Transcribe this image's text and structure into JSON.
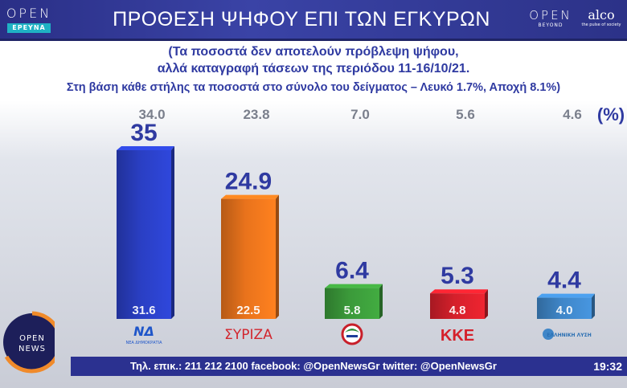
{
  "header": {
    "title": "ΠΡΟΘΕΣΗ ΨΗΦΟΥ ΕΠΙ ΤΩΝ ΕΓΚΥΡΩΝ",
    "logo_left_word": "OPEN",
    "logo_left_sub": "ΕΡΕΥΝΑ",
    "logo_right1_word": "OPEN",
    "logo_right1_sub": "BEYOND",
    "logo_right2_word": "alco",
    "logo_right2_sub": "the pulse of society"
  },
  "subtitle": {
    "line1": "(Τα ποσοστά δεν αποτελούν πρόβλεψη ψήφου,",
    "line2": "αλλά καταγραφή τάσεων της περιόδου 11-16/10/21.",
    "line3": "Στη βάση κάθε στήλης τα ποσοστά στο σύνολο του δείγματος – Λευκό 1.7%, Αποχή 8.1%)"
  },
  "chart_data": {
    "type": "bar",
    "title": "ΠΡΟΘΕΣΗ ΨΗΦΟΥ ΕΠΙ ΤΩΝ ΕΓΚΥΡΩΝ",
    "unit": "(%)",
    "categories": [
      "ΝΔ",
      "ΣΥΡΙΖΑ",
      "ΠΑΣΟΚ",
      "ΚΚΕ",
      "ΕΛΛΗΝΙΚΗ ΛΥΣΗ"
    ],
    "series": [
      {
        "name": "",
        "values": [
          35,
          24.9,
          6.4,
          5.3,
          4.4
        ],
        "labels": [
          "35",
          "24.9",
          "6.4",
          "5.3",
          "4.4"
        ]
      },
      {
        "name": "",
        "values": [
          31.6,
          22.5,
          5.8,
          4.8,
          4.0
        ],
        "labels": [
          "31.6",
          "22.5",
          "5.8",
          "4.8",
          "4.0"
        ]
      },
      {
        "name": "",
        "values": [
          34.0,
          23.8,
          7.0,
          5.6,
          4.6
        ],
        "labels": [
          "34.0",
          "23.8",
          "7.0",
          "5.6",
          "4.6"
        ]
      }
    ],
    "colors": [
      "#2a3fc4",
      "#e9731c",
      "#3b9a3a",
      "#d5202b",
      "#3f86c8"
    ],
    "party_logo_text": [
      "ΝΔ",
      "ΣΥΡΙΖΑ",
      "",
      "ΚΚΕ",
      "ΕΛΛΗΝΙΚΗ ΛΥΣΗ"
    ],
    "party_logo_subtext": [
      "ΝΕΑ ΔΗΜΟΚΡΑΤΙΑ",
      "",
      "",
      "",
      ""
    ],
    "grid": false,
    "legend": "none"
  },
  "footer": {
    "contact": "Τηλ. επικ.: 211 212 2100 facebook: @OpenNewsGr twitter: @OpenNewsGr",
    "time": "19:32",
    "news_logo_word1": "OPEN",
    "news_logo_word2": "NEWS"
  }
}
